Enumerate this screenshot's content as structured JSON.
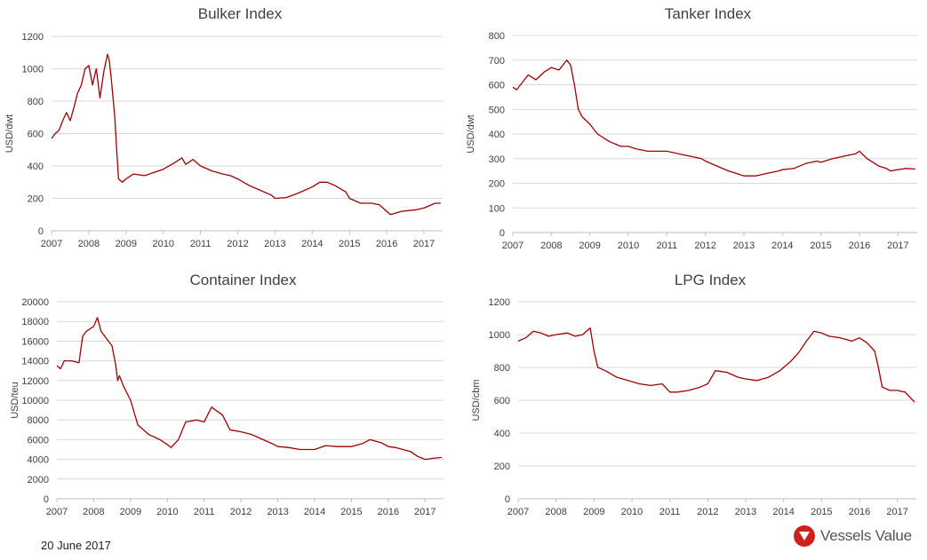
{
  "footer": {
    "date": "20 June 2017"
  },
  "brand": {
    "name": "Vessels Value",
    "icon": "vessels-value-logo-icon",
    "color": "#d0201c"
  },
  "line_color": "#a00000",
  "chart_data": [
    {
      "type": "line",
      "title": "Bulker Index",
      "ylabel": "USD/dwt",
      "ylim": [
        0,
        1200
      ],
      "yticks": [
        0,
        200,
        400,
        600,
        800,
        1000,
        1200
      ],
      "xlim": [
        2007.0,
        2017.5
      ],
      "xticks": [
        "2007",
        "2008",
        "2009",
        "2010",
        "2011",
        "2012",
        "2013",
        "2014",
        "2015",
        "2016",
        "2017"
      ],
      "grid": true,
      "x": [
        2007.0,
        2007.1,
        2007.2,
        2007.3,
        2007.4,
        2007.5,
        2007.6,
        2007.7,
        2007.8,
        2007.9,
        2008.0,
        2008.1,
        2008.15,
        2008.2,
        2008.3,
        2008.35,
        2008.4,
        2008.5,
        2008.55,
        2008.6,
        2008.7,
        2008.75,
        2008.8,
        2008.9,
        2009.0,
        2009.2,
        2009.5,
        2010.0,
        2010.3,
        2010.5,
        2010.6,
        2010.8,
        2011.0,
        2011.3,
        2011.6,
        2011.8,
        2012.0,
        2012.3,
        2012.6,
        2012.9,
        2013.0,
        2013.3,
        2013.6,
        2014.0,
        2014.2,
        2014.4,
        2014.6,
        2014.9,
        2015.0,
        2015.3,
        2015.6,
        2015.8,
        2016.0,
        2016.1,
        2016.4,
        2016.8,
        2017.0,
        2017.3,
        2017.45
      ],
      "y": [
        570,
        600,
        620,
        680,
        730,
        680,
        760,
        850,
        900,
        1000,
        1020,
        900,
        950,
        1000,
        820,
        900,
        980,
        1090,
        1050,
        950,
        700,
        500,
        320,
        300,
        320,
        350,
        340,
        380,
        420,
        450,
        410,
        440,
        400,
        370,
        350,
        340,
        320,
        280,
        250,
        220,
        200,
        205,
        230,
        270,
        300,
        300,
        280,
        240,
        200,
        170,
        170,
        160,
        120,
        100,
        120,
        130,
        140,
        170,
        170
      ]
    },
    {
      "type": "line",
      "title": "Tanker Index",
      "ylabel": "USD/dwt",
      "ylim": [
        0,
        800
      ],
      "yticks": [
        0,
        100,
        200,
        300,
        400,
        500,
        600,
        700,
        800
      ],
      "xlim": [
        2007.0,
        2017.5
      ],
      "xticks": [
        "2007",
        "2008",
        "2009",
        "2010",
        "2011",
        "2012",
        "2013",
        "2014",
        "2015",
        "2016",
        "2017"
      ],
      "grid": true,
      "x": [
        2007.0,
        2007.1,
        2007.2,
        2007.4,
        2007.6,
        2007.8,
        2008.0,
        2008.2,
        2008.4,
        2008.5,
        2008.6,
        2008.7,
        2008.8,
        2009.0,
        2009.2,
        2009.5,
        2009.8,
        2010.0,
        2010.2,
        2010.5,
        2010.8,
        2011.0,
        2011.3,
        2011.6,
        2011.9,
        2012.0,
        2012.3,
        2012.6,
        2012.8,
        2013.0,
        2013.3,
        2013.6,
        2013.9,
        2014.0,
        2014.3,
        2014.6,
        2014.9,
        2015.0,
        2015.3,
        2015.6,
        2015.9,
        2016.0,
        2016.2,
        2016.5,
        2016.7,
        2016.8,
        2017.0,
        2017.2,
        2017.45
      ],
      "y": [
        590,
        580,
        600,
        640,
        620,
        650,
        670,
        660,
        700,
        680,
        600,
        500,
        470,
        440,
        400,
        370,
        350,
        350,
        340,
        330,
        330,
        330,
        320,
        310,
        300,
        290,
        270,
        250,
        240,
        230,
        230,
        240,
        250,
        255,
        260,
        280,
        290,
        285,
        300,
        310,
        320,
        330,
        300,
        270,
        260,
        250,
        255,
        260,
        258
      ]
    },
    {
      "type": "line",
      "title": "Container Index",
      "ylabel": "USD/teu",
      "ylim": [
        0,
        20000
      ],
      "yticks": [
        0,
        2000,
        4000,
        6000,
        8000,
        10000,
        12000,
        14000,
        16000,
        18000,
        20000
      ],
      "xlim": [
        2007.0,
        2017.5
      ],
      "xticks": [
        "2007",
        "2008",
        "2009",
        "2010",
        "2011",
        "2012",
        "2013",
        "2014",
        "2015",
        "2016",
        "2017"
      ],
      "grid": true,
      "x": [
        2007.0,
        2007.1,
        2007.2,
        2007.4,
        2007.6,
        2007.7,
        2007.8,
        2008.0,
        2008.1,
        2008.2,
        2008.3,
        2008.5,
        2008.6,
        2008.65,
        2008.7,
        2008.8,
        2009.0,
        2009.2,
        2009.5,
        2009.8,
        2010.0,
        2010.1,
        2010.3,
        2010.5,
        2010.8,
        2011.0,
        2011.2,
        2011.5,
        2011.7,
        2012.0,
        2012.3,
        2012.6,
        2012.9,
        2013.0,
        2013.3,
        2013.6,
        2014.0,
        2014.3,
        2014.6,
        2015.0,
        2015.3,
        2015.5,
        2015.8,
        2016.0,
        2016.2,
        2016.4,
        2016.6,
        2016.8,
        2017.0,
        2017.2,
        2017.45
      ],
      "y": [
        13500,
        13200,
        14000,
        14000,
        13800,
        16500,
        17000,
        17500,
        18400,
        17000,
        16500,
        15500,
        13500,
        12000,
        12500,
        11500,
        10000,
        7500,
        6500,
        6000,
        5500,
        5200,
        6000,
        7800,
        8000,
        7800,
        9300,
        8500,
        7000,
        6800,
        6500,
        6000,
        5500,
        5300,
        5200,
        5000,
        5000,
        5400,
        5300,
        5300,
        5600,
        6000,
        5700,
        5300,
        5200,
        5000,
        4800,
        4300,
        4000,
        4100,
        4200
      ]
    },
    {
      "type": "line",
      "title": "LPG Index",
      "ylabel": "USD/cbm",
      "ylim": [
        0,
        1200
      ],
      "yticks": [
        0,
        200,
        400,
        600,
        800,
        1000,
        1200
      ],
      "xlim": [
        2007.0,
        2017.5
      ],
      "xticks": [
        "2007",
        "2008",
        "2009",
        "2010",
        "2011",
        "2012",
        "2013",
        "2014",
        "2015",
        "2016",
        "2017"
      ],
      "grid": true,
      "x": [
        2007.0,
        2007.2,
        2007.4,
        2007.6,
        2007.8,
        2008.0,
        2008.3,
        2008.5,
        2008.7,
        2008.9,
        2009.0,
        2009.1,
        2009.3,
        2009.6,
        2009.9,
        2010.2,
        2010.5,
        2010.8,
        2011.0,
        2011.2,
        2011.5,
        2011.8,
        2012.0,
        2012.2,
        2012.5,
        2012.8,
        2013.0,
        2013.3,
        2013.6,
        2013.9,
        2014.2,
        2014.4,
        2014.6,
        2014.8,
        2015.0,
        2015.2,
        2015.5,
        2015.8,
        2016.0,
        2016.2,
        2016.4,
        2016.5,
        2016.6,
        2016.8,
        2017.0,
        2017.2,
        2017.45
      ],
      "y": [
        960,
        980,
        1020,
        1010,
        990,
        1000,
        1010,
        990,
        1000,
        1040,
        900,
        800,
        780,
        740,
        720,
        700,
        690,
        700,
        650,
        650,
        660,
        680,
        700,
        780,
        770,
        740,
        730,
        720,
        740,
        780,
        840,
        890,
        960,
        1020,
        1010,
        990,
        980,
        960,
        980,
        950,
        900,
        800,
        680,
        660,
        660,
        650,
        590
      ]
    }
  ]
}
